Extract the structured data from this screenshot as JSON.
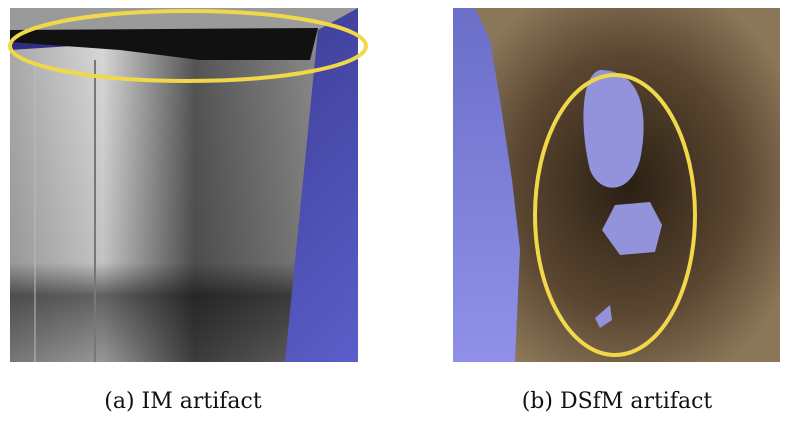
{
  "figures": [
    {
      "caption": "(a) IM artifact"
    },
    {
      "caption": "(b) DSfM artifact"
    }
  ]
}
